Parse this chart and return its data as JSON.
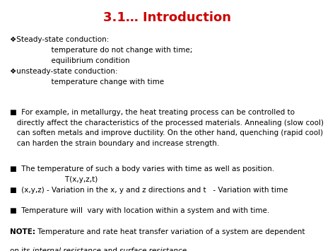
{
  "title": "3.1… Introduction",
  "title_color": "#CC0000",
  "title_fontsize": 13,
  "bg_color": "#FFFFFF",
  "bullet1": "❖Steady-state conduction:\n                  temperature do not change with time;\n                  equilibrium condition\n❖unsteady-state conduction:\n                  temperature change with time",
  "bullet2": "■  For example, in metallurgy, the heat treating process can be controlled to\n   directly affect the characteristics of the processed materials. Annealing (slow cool)\n   can soften metals and improve ductility. On the other hand, quenching (rapid cool)\n   can harden the strain boundary and increase strength.",
  "bullet3": "■  The temperature of such a body varies with time as well as position.\n                        T(x,y,z,t)",
  "bullet4": "■  (x,y,z) - Variation in the x, y and z directions and t   - Variation with time",
  "bullet5": "■  Temperature will  vary with location within a system and with time.",
  "note_bold": "NOTE:",
  "note_normal1": " Temperature and rate heat transfer variation of a system are dependent",
  "note_line2_normal1": "on its ",
  "note_italic1": "internal resistance",
  "note_line2_normal2": " and ",
  "note_italic2": "surface resistance",
  "fontsize": 7.5,
  "note_fontsize": 7.5
}
